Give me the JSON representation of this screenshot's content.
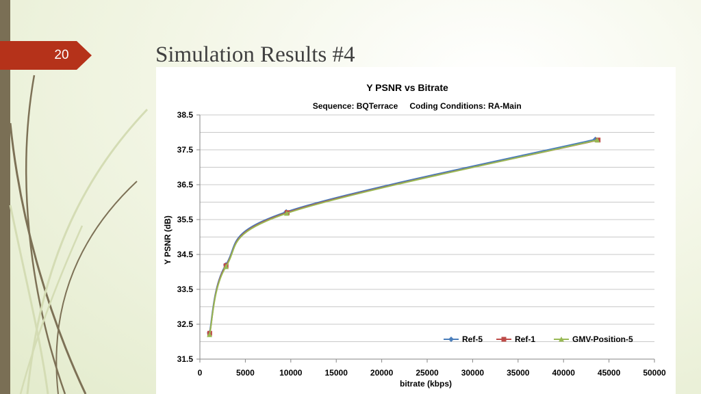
{
  "slide": {
    "number": "20",
    "title": "Simulation Results #4",
    "colors": {
      "badge": "#b5321a",
      "left_bar": "#7a6f55",
      "swoosh_dark": "#7d7156",
      "swoosh_light": "#d4dcb4"
    }
  },
  "chart_data": {
    "type": "line",
    "title": "Y PSNR vs Bitrate",
    "subtitle_left": "Sequence: BQTerrace",
    "subtitle_right": "Coding Conditions:  RA-Main",
    "xlabel": "bitrate (kbps)",
    "ylabel": "Y PSNR (dB)",
    "xlim": [
      0,
      50000
    ],
    "ylim": [
      31.5,
      38.5
    ],
    "xticks": [
      "0",
      "5000",
      "10000",
      "15000",
      "20000",
      "25000",
      "30000",
      "35000",
      "40000",
      "45000",
      "50000"
    ],
    "yticks": [
      "31.5",
      "32.5",
      "33.5",
      "34.5",
      "35.5",
      "36.5",
      "37.5",
      "38.5"
    ],
    "ytick_values": [
      31.5,
      32.5,
      33.5,
      34.5,
      35.5,
      36.5,
      37.5,
      38.5
    ],
    "grid": true,
    "legend_position": "bottom-right",
    "series": [
      {
        "name": "Ref-5",
        "color": "#4a7ebb",
        "marker": "diamond",
        "points": [
          [
            1050,
            32.25
          ],
          [
            2850,
            34.2
          ],
          [
            9500,
            35.72
          ],
          [
            43500,
            37.8
          ]
        ]
      },
      {
        "name": "Ref-1",
        "color": "#be4b48",
        "marker": "square",
        "points": [
          [
            1080,
            32.24
          ],
          [
            2880,
            34.18
          ],
          [
            9600,
            35.7
          ],
          [
            43800,
            37.78
          ]
        ]
      },
      {
        "name": "GMV-Position-5",
        "color": "#98b954",
        "marker": "triangle",
        "points": [
          [
            1060,
            32.2
          ],
          [
            2870,
            34.15
          ],
          [
            9550,
            35.68
          ],
          [
            43700,
            37.78
          ]
        ]
      }
    ]
  }
}
